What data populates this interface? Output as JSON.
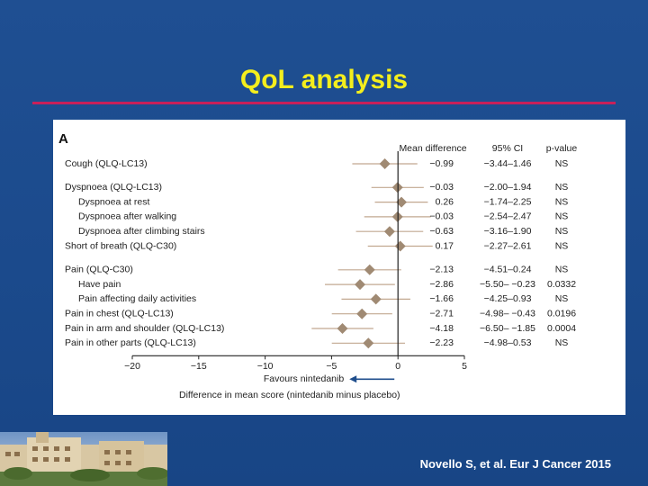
{
  "slide": {
    "title": "QoL analysis",
    "citation": "Novello S, et al. Eur J Cancer 2015"
  },
  "chart_data": {
    "type": "forest",
    "panel_label": "A",
    "column_headers": [
      "Mean difference",
      "95% CI",
      "p-value"
    ],
    "rows": [
      {
        "label": "Cough (QLQ-LC13)",
        "indent": false,
        "group_gap_before": false,
        "mean": -0.99,
        "mean_text": "−0.99",
        "ci_low": -3.44,
        "ci_high": 1.46,
        "ci_text": "−3.44–1.46",
        "p": "NS"
      },
      {
        "label": "Dyspnoea (QLQ-LC13)",
        "indent": false,
        "group_gap_before": true,
        "mean": -0.03,
        "mean_text": "−0.03",
        "ci_low": -2.0,
        "ci_high": 1.94,
        "ci_text": "−2.00–1.94",
        "p": "NS"
      },
      {
        "label": "Dyspnoea at rest",
        "indent": true,
        "group_gap_before": false,
        "mean": 0.26,
        "mean_text": "0.26",
        "ci_low": -1.74,
        "ci_high": 2.25,
        "ci_text": "−1.74–2.25",
        "p": "NS"
      },
      {
        "label": "Dyspnoea after walking",
        "indent": true,
        "group_gap_before": false,
        "mean": -0.03,
        "mean_text": "−0.03",
        "ci_low": -2.54,
        "ci_high": 2.47,
        "ci_text": "−2.54–2.47",
        "p": "NS"
      },
      {
        "label": "Dyspnoea after climbing stairs",
        "indent": true,
        "group_gap_before": false,
        "mean": -0.63,
        "mean_text": "−0.63",
        "ci_low": -3.16,
        "ci_high": 1.9,
        "ci_text": "−3.16–1.90",
        "p": "NS"
      },
      {
        "label": "Short of breath (QLQ-C30)",
        "indent": false,
        "group_gap_before": false,
        "mean": 0.17,
        "mean_text": "0.17",
        "ci_low": -2.27,
        "ci_high": 2.61,
        "ci_text": "−2.27–2.61",
        "p": "NS"
      },
      {
        "label": "Pain (QLQ-C30)",
        "indent": false,
        "group_gap_before": true,
        "mean": -2.13,
        "mean_text": "−2.13",
        "ci_low": -4.51,
        "ci_high": 0.24,
        "ci_text": "−4.51–0.24",
        "p": "NS"
      },
      {
        "label": "Have pain",
        "indent": true,
        "group_gap_before": false,
        "mean": -2.86,
        "mean_text": "−2.86",
        "ci_low": -5.5,
        "ci_high": -0.23,
        "ci_text": "−5.50– −0.23",
        "p": "0.0332"
      },
      {
        "label": "Pain affecting daily activities",
        "indent": true,
        "group_gap_before": false,
        "mean": -1.66,
        "mean_text": "−1.66",
        "ci_low": -4.25,
        "ci_high": 0.93,
        "ci_text": "−4.25–0.93",
        "p": "NS"
      },
      {
        "label": "Pain in chest (QLQ-LC13)",
        "indent": false,
        "group_gap_before": false,
        "mean": -2.71,
        "mean_text": "−2.71",
        "ci_low": -4.98,
        "ci_high": -0.43,
        "ci_text": "−4.98– −0.43",
        "p": "0.0196"
      },
      {
        "label": "Pain in arm and shoulder (QLQ-LC13)",
        "indent": false,
        "group_gap_before": false,
        "mean": -4.18,
        "mean_text": "−4.18",
        "ci_low": -6.5,
        "ci_high": -1.85,
        "ci_text": "−6.50– −1.85",
        "p": "0.0004"
      },
      {
        "label": "Pain in other parts (QLQ-LC13)",
        "indent": false,
        "group_gap_before": false,
        "mean": -2.23,
        "mean_text": "−2.23",
        "ci_low": -4.98,
        "ci_high": 0.53,
        "ci_text": "−4.98–0.53",
        "p": "NS"
      }
    ],
    "x_ticks": [
      -20,
      -15,
      -10,
      -5,
      0,
      5
    ],
    "x_tick_labels": [
      "−20",
      "−15",
      "−10",
      "−5",
      "0",
      "5"
    ],
    "xlim": [
      -20,
      5
    ],
    "favours_label": "Favours nintedanib",
    "xlabel": "Difference in mean score (nintedanib minus placebo)",
    "marker_color": "#a08a73",
    "ci_line_color": "#c2a890",
    "arrow_color": "#1f4e8c"
  }
}
